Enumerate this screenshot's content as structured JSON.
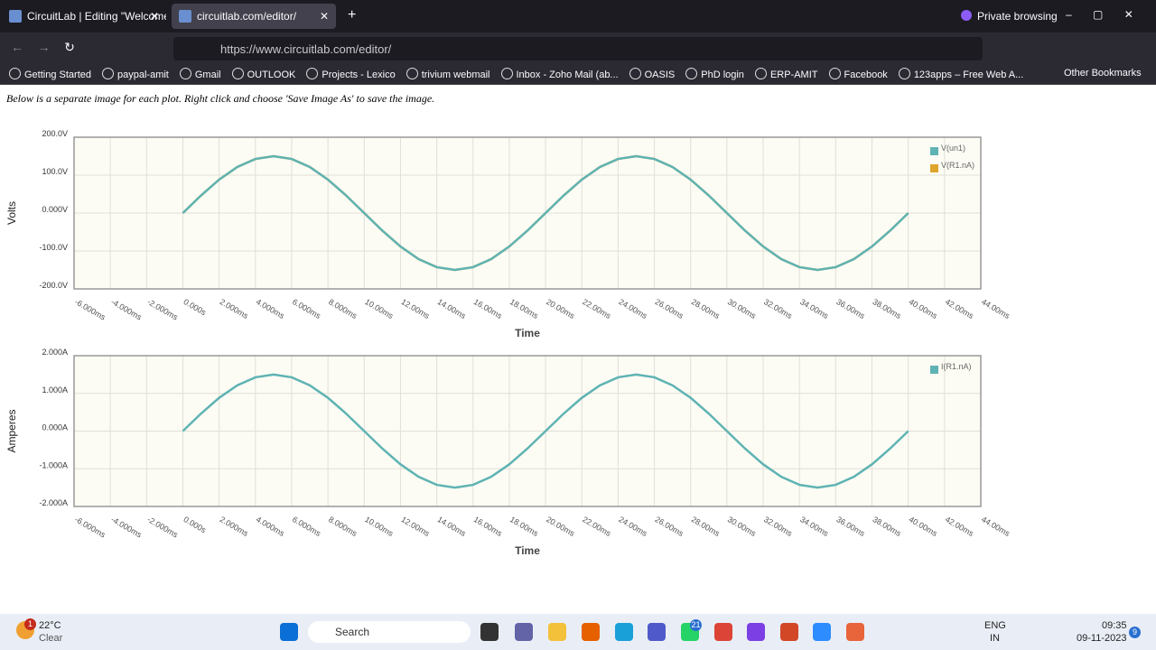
{
  "browser": {
    "tabs": [
      "CircuitLab | Editing \"Welcome t",
      "circuitlab.com/editor/"
    ],
    "private": "Private browsing",
    "url": "https://www.circuitlab.com/editor/",
    "bookmarks": [
      "Getting Started",
      "paypal-amit",
      "Gmail",
      "OUTLOOK",
      "Projects - Lexico",
      "trivium webmail",
      "Inbox - Zoho Mail (ab...",
      "OASIS",
      "PhD login",
      "ERP-AMIT",
      "Facebook",
      "123apps – Free Web A..."
    ],
    "other_bookmarks": "Other Bookmarks"
  },
  "page_text": "Below is a separate image for each plot. Right click and choose 'Save Image As' to save the image.",
  "chart_data": [
    {
      "type": "line",
      "xlabel": "Time",
      "ylabel": "Volts",
      "grid": true,
      "xlim": [
        -6,
        44
      ],
      "ylim": [
        -200,
        200
      ],
      "xticks": [
        {
          "value": -6,
          "label": "-6.000ms"
        },
        {
          "value": -4,
          "label": "-4.000ms"
        },
        {
          "value": -2,
          "label": "-2.000ms"
        },
        {
          "value": 0,
          "label": "0.000s"
        },
        {
          "value": 2,
          "label": "2.000ms"
        },
        {
          "value": 4,
          "label": "4.000ms"
        },
        {
          "value": 6,
          "label": "6.000ms"
        },
        {
          "value": 8,
          "label": "8.000ms"
        },
        {
          "value": 10,
          "label": "10.00ms"
        },
        {
          "value": 12,
          "label": "12.00ms"
        },
        {
          "value": 14,
          "label": "14.00ms"
        },
        {
          "value": 16,
          "label": "16.00ms"
        },
        {
          "value": 18,
          "label": "18.00ms"
        },
        {
          "value": 20,
          "label": "20.00ms"
        },
        {
          "value": 22,
          "label": "22.00ms"
        },
        {
          "value": 24,
          "label": "24.00ms"
        },
        {
          "value": 26,
          "label": "26.00ms"
        },
        {
          "value": 28,
          "label": "28.00ms"
        },
        {
          "value": 30,
          "label": "30.00ms"
        },
        {
          "value": 32,
          "label": "32.00ms"
        },
        {
          "value": 34,
          "label": "34.00ms"
        },
        {
          "value": 36,
          "label": "36.00ms"
        },
        {
          "value": 38,
          "label": "38.00ms"
        },
        {
          "value": 40,
          "label": "40.00ms"
        },
        {
          "value": 42,
          "label": "42.00ms"
        },
        {
          "value": 44,
          "label": "44.00ms"
        }
      ],
      "yticks": [
        {
          "value": 200,
          "label": "200.0V"
        },
        {
          "value": 100,
          "label": "100.0V"
        },
        {
          "value": 0,
          "label": "0.000V"
        },
        {
          "value": -100,
          "label": "-100.0V"
        },
        {
          "value": -200,
          "label": "-200.0V"
        }
      ],
      "x": [
        0,
        1,
        2,
        3,
        4,
        5,
        6,
        7,
        8,
        9,
        10,
        11,
        12,
        13,
        14,
        15,
        16,
        17,
        18,
        19,
        20,
        21,
        22,
        23,
        24,
        25,
        26,
        27,
        28,
        29,
        30,
        31,
        32,
        33,
        34,
        35,
        36,
        37,
        38,
        39,
        40
      ],
      "series": [
        {
          "name": "V(un1)",
          "color": "#5fb3b3",
          "values": [
            0,
            46.4,
            88.2,
            121.4,
            142.7,
            150,
            142.7,
            121.4,
            88.2,
            46.4,
            0,
            -46.4,
            -88.2,
            -121.4,
            -142.7,
            -150,
            -142.7,
            -121.4,
            -88.2,
            -46.4,
            0,
            46.4,
            88.2,
            121.4,
            142.7,
            150,
            142.7,
            121.4,
            88.2,
            46.4,
            0,
            -46.4,
            -88.2,
            -121.4,
            -142.7,
            -150,
            -142.7,
            -121.4,
            -88.2,
            -46.4,
            0
          ]
        },
        {
          "name": "V(R1.nA)",
          "color": "#e0a52c",
          "values": [
            0,
            46.4,
            88.2,
            121.4,
            142.7,
            150,
            142.7,
            121.4,
            88.2,
            46.4,
            0,
            -46.4,
            -88.2,
            -121.4,
            -142.7,
            -150,
            -142.7,
            -121.4,
            -88.2,
            -46.4,
            0,
            46.4,
            88.2,
            121.4,
            142.7,
            150,
            142.7,
            121.4,
            88.2,
            46.4,
            0,
            -46.4,
            -88.2,
            -121.4,
            -142.7,
            -150,
            -142.7,
            -121.4,
            -88.2,
            -46.4,
            0
          ]
        }
      ]
    },
    {
      "type": "line",
      "xlabel": "Time",
      "ylabel": "Amperes",
      "grid": true,
      "xlim": [
        -6,
        44
      ],
      "ylim": [
        -2,
        2
      ],
      "xticks": [
        {
          "value": -6,
          "label": "-6.000ms"
        },
        {
          "value": -4,
          "label": "-4.000ms"
        },
        {
          "value": -2,
          "label": "-2.000ms"
        },
        {
          "value": 0,
          "label": "0.000s"
        },
        {
          "value": 2,
          "label": "2.000ms"
        },
        {
          "value": 4,
          "label": "4.000ms"
        },
        {
          "value": 6,
          "label": "6.000ms"
        },
        {
          "value": 8,
          "label": "8.000ms"
        },
        {
          "value": 10,
          "label": "10.00ms"
        },
        {
          "value": 12,
          "label": "12.00ms"
        },
        {
          "value": 14,
          "label": "14.00ms"
        },
        {
          "value": 16,
          "label": "16.00ms"
        },
        {
          "value": 18,
          "label": "18.00ms"
        },
        {
          "value": 20,
          "label": "20.00ms"
        },
        {
          "value": 22,
          "label": "22.00ms"
        },
        {
          "value": 24,
          "label": "24.00ms"
        },
        {
          "value": 26,
          "label": "26.00ms"
        },
        {
          "value": 28,
          "label": "28.00ms"
        },
        {
          "value": 30,
          "label": "30.00ms"
        },
        {
          "value": 32,
          "label": "32.00ms"
        },
        {
          "value": 34,
          "label": "34.00ms"
        },
        {
          "value": 36,
          "label": "36.00ms"
        },
        {
          "value": 38,
          "label": "38.00ms"
        },
        {
          "value": 40,
          "label": "40.00ms"
        },
        {
          "value": 42,
          "label": "42.00ms"
        },
        {
          "value": 44,
          "label": "44.00ms"
        }
      ],
      "yticks": [
        {
          "value": 2,
          "label": "2.000A"
        },
        {
          "value": 1,
          "label": "1.000A"
        },
        {
          "value": 0,
          "label": "0.000A"
        },
        {
          "value": -1,
          "label": "-1.000A"
        },
        {
          "value": -2,
          "label": "-2.000A"
        }
      ],
      "x": [
        0,
        1,
        2,
        3,
        4,
        5,
        6,
        7,
        8,
        9,
        10,
        11,
        12,
        13,
        14,
        15,
        16,
        17,
        18,
        19,
        20,
        21,
        22,
        23,
        24,
        25,
        26,
        27,
        28,
        29,
        30,
        31,
        32,
        33,
        34,
        35,
        36,
        37,
        38,
        39,
        40
      ],
      "series": [
        {
          "name": "I(R1.nA)",
          "color": "#5fb3b3",
          "values": [
            0,
            0.464,
            0.882,
            1.214,
            1.427,
            1.5,
            1.427,
            1.214,
            0.882,
            0.464,
            0,
            -0.464,
            -0.882,
            -1.214,
            -1.427,
            -1.5,
            -1.427,
            -1.214,
            -0.882,
            -0.464,
            0,
            0.464,
            0.882,
            1.214,
            1.427,
            1.5,
            1.427,
            1.214,
            0.882,
            0.464,
            0,
            -0.464,
            -0.882,
            -1.214,
            -1.427,
            -1.5,
            -1.427,
            -1.214,
            -0.882,
            -0.464,
            0
          ]
        }
      ]
    }
  ],
  "taskbar": {
    "temperature": "22°C",
    "weather": "Clear",
    "weather_badge": "1",
    "search": "Search",
    "whatsapp_badge": "21",
    "language": "ENG",
    "region": "IN",
    "time": "09:35",
    "date": "09-11-2023",
    "notifications": "9"
  }
}
